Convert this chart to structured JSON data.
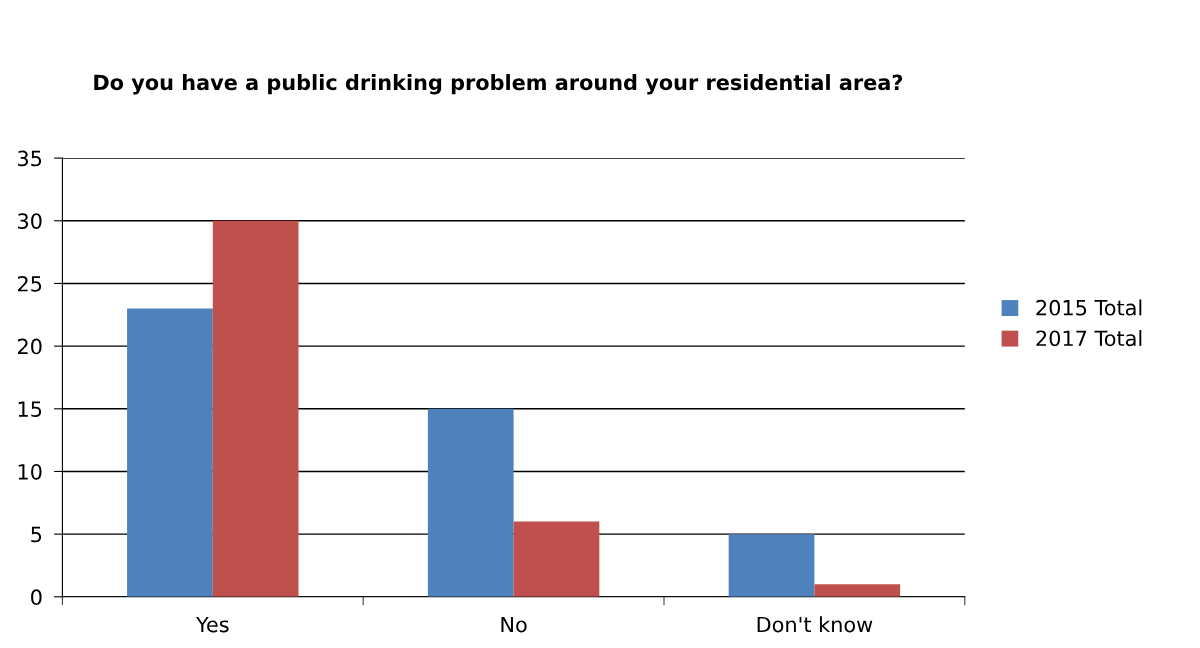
{
  "chart_data": {
    "type": "bar",
    "title": "Do you have a public drinking problem around your residential area?",
    "categories": [
      "Yes",
      "No",
      "Don't know"
    ],
    "series": [
      {
        "name": "2015 Total",
        "color": "#4f81bd",
        "values": [
          23,
          15,
          5
        ]
      },
      {
        "name": "2017 Total",
        "color": "#c0504d",
        "values": [
          30,
          6,
          1
        ]
      }
    ],
    "ylim": [
      0,
      35
    ],
    "yticks": [
      0,
      5,
      10,
      15,
      20,
      25,
      30,
      35
    ],
    "grid": "y",
    "legend": "right"
  }
}
